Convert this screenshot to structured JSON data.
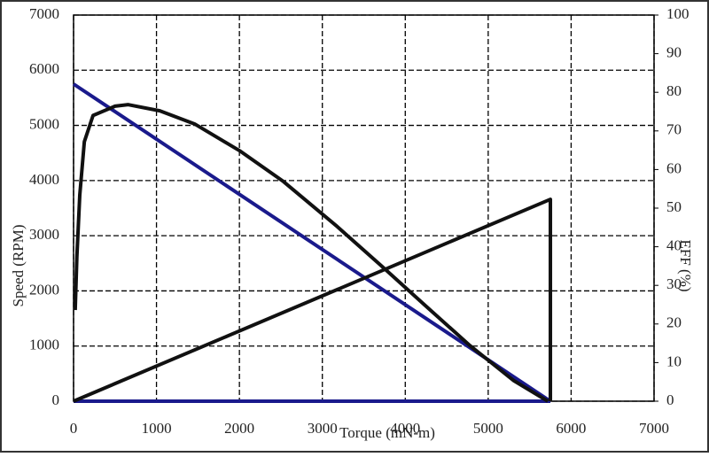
{
  "chart_data": {
    "type": "line",
    "xlabel": "Torque (mN-m)",
    "ylabel": "Speed (RPM)",
    "y2label": "EFF (%)",
    "xlim": [
      0,
      7000
    ],
    "xticks": [
      0,
      1000,
      2000,
      3000,
      4000,
      5000,
      6000,
      7000
    ],
    "ylim": [
      0,
      7000
    ],
    "yticks": [
      0,
      1000,
      2000,
      3000,
      4000,
      5000,
      6000,
      7000
    ],
    "y2lim": [
      0,
      100
    ],
    "y2ticks": [
      0,
      10,
      20,
      30,
      40,
      50,
      60,
      70,
      80,
      90,
      100
    ],
    "grid": true,
    "series": [
      {
        "color": "#1a1a8c",
        "x": [
          0,
          5750
        ],
        "values": [
          5750,
          0
        ]
      },
      {
        "color": "#1a1a8c",
        "x": [
          0,
          5750
        ],
        "values": [
          0,
          0
        ]
      },
      {
        "color": "#111111",
        "x": [
          0,
          5750,
          5750
        ],
        "values": [
          0,
          3660,
          0
        ]
      },
      {
        "color": "#111111",
        "axis": "y2",
        "x": [
          20,
          40,
          75,
          130,
          235,
          500,
          660,
          1040,
          1460,
          2000,
          2530,
          3170,
          3710,
          4240,
          4780,
          5310,
          5720
        ],
        "values": [
          23.6,
          37.4,
          53.4,
          67.2,
          74,
          76.4,
          76.8,
          75.2,
          71.8,
          64.9,
          56.9,
          45.4,
          35.1,
          24.8,
          14.4,
          5.3,
          0
        ]
      }
    ]
  }
}
